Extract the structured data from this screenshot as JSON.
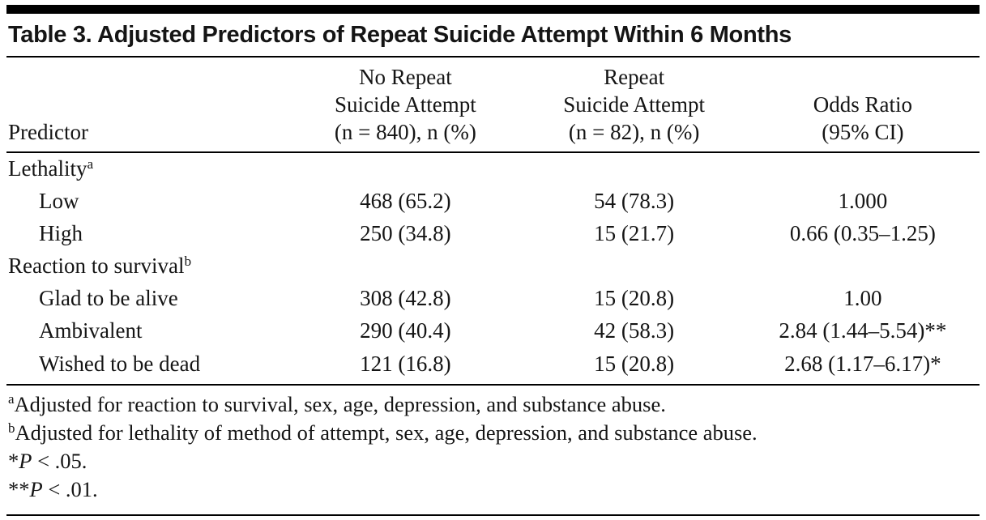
{
  "table": {
    "title": "Table 3. Adjusted Predictors of Repeat Suicide Attempt Within 6 Months",
    "columns": {
      "predictor": "Predictor",
      "no_repeat": [
        "No Repeat",
        "Suicide Attempt",
        "(n = 840), n (%)"
      ],
      "repeat": [
        "Repeat",
        "Suicide Attempt",
        "(n = 82), n (%)"
      ],
      "odds": [
        "Odds Ratio",
        "(95% CI)"
      ]
    },
    "rows": [
      {
        "label": "Lethality",
        "sup": "a",
        "no_repeat": "",
        "repeat": "",
        "odds": ""
      },
      {
        "label": "Low",
        "sup": "",
        "no_repeat": "468 (65.2)",
        "repeat": "54 (78.3)",
        "odds": "1.000"
      },
      {
        "label": "High",
        "sup": "",
        "no_repeat": "250 (34.8)",
        "repeat": "15 (21.7)",
        "odds": "0.66 (0.35–1.25)"
      },
      {
        "label": "Reaction to survival",
        "sup": "b",
        "no_repeat": "",
        "repeat": "",
        "odds": ""
      },
      {
        "label": "Glad to be alive",
        "sup": "",
        "no_repeat": "308 (42.8)",
        "repeat": "15 (20.8)",
        "odds": "1.00"
      },
      {
        "label": "Ambivalent",
        "sup": "",
        "no_repeat": "290 (40.4)",
        "repeat": "42 (58.3)",
        "odds": "2.84 (1.44–5.54)**"
      },
      {
        "label": "Wished to be dead",
        "sup": "",
        "no_repeat": "121 (16.8)",
        "repeat": "15 (20.8)",
        "odds": "2.68 (1.17–6.17)*"
      }
    ],
    "footnotes": [
      {
        "sup": "a",
        "star": "",
        "p": "",
        "text": "Adjusted for reaction to survival, sex, age, depression, and substance abuse."
      },
      {
        "sup": "b",
        "star": "",
        "p": "",
        "text": "Adjusted for lethality of method of attempt, sex, age, depression, and substance abuse."
      },
      {
        "sup": "",
        "star": "*",
        "p": "P",
        "text": " < .05."
      },
      {
        "sup": "",
        "star": "**",
        "p": "P",
        "text": " < .01."
      }
    ]
  }
}
